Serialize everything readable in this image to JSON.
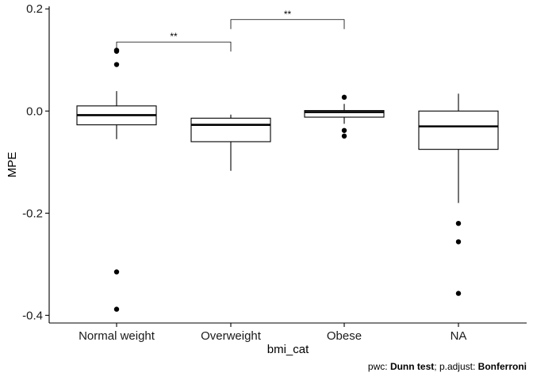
{
  "chart_data": {
    "type": "box",
    "xlabel": "bmi_cat",
    "ylabel": "MPE",
    "ylim": [
      -0.415,
      0.205
    ],
    "yticks": [
      0.2,
      0.0,
      -0.2,
      -0.4
    ],
    "ytick_labels": [
      "0.2",
      "0.0",
      "-0.2",
      "-0.4"
    ],
    "categories": [
      "Normal weight",
      "Overweight",
      "Obese",
      "NA"
    ],
    "boxes": [
      {
        "category": "Normal weight",
        "whisker_low": -0.055,
        "q1": -0.027,
        "median": -0.008,
        "q3": 0.01,
        "whisker_high": 0.039,
        "outliers": [
          0.119,
          0.117,
          0.091,
          -0.315,
          -0.388
        ]
      },
      {
        "category": "Overweight",
        "whisker_low": -0.117,
        "q1": -0.06,
        "median": -0.027,
        "q3": -0.014,
        "whisker_high": -0.007,
        "outliers": []
      },
      {
        "category": "Obese",
        "whisker_low": -0.025,
        "q1": -0.012,
        "median": -0.002,
        "q3": 0.001,
        "whisker_high": 0.014,
        "outliers": [
          0.027,
          -0.038,
          -0.049
        ]
      },
      {
        "category": "NA",
        "whisker_low": -0.18,
        "q1": -0.075,
        "median": -0.03,
        "q3": 0.0,
        "whisker_high": 0.034,
        "outliers": [
          -0.22,
          -0.256,
          -0.357
        ]
      }
    ],
    "significance": [
      {
        "from": "Normal weight",
        "to": "Overweight",
        "label": "**",
        "y": 0.135
      },
      {
        "from": "Overweight",
        "to": "Obese",
        "label": "**",
        "y": 0.179
      }
    ]
  },
  "caption": {
    "pwc_prefix": "pwc: ",
    "pwc_method": "Dunn test",
    "sep": "; p.adjust: ",
    "adjust_method": "Bonferroni"
  }
}
